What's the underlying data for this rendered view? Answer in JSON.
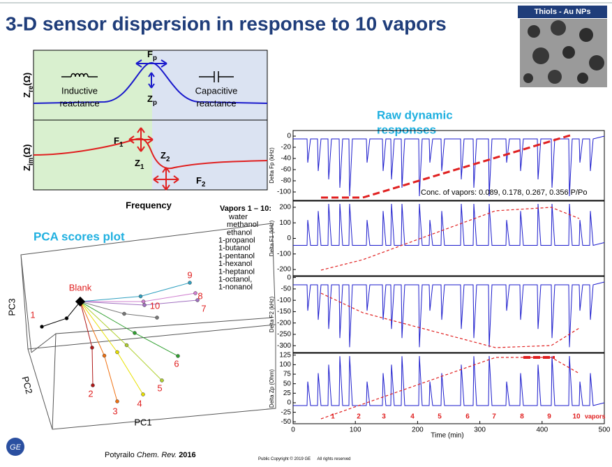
{
  "header": {
    "title": "3-D sensor dispersion in response to 10 vapors",
    "badge": "Thiols - Au NPs"
  },
  "impedance": {
    "zre": {
      "main": "Z",
      "sub": "re",
      "rest": "(Ω)"
    },
    "zim": {
      "main": "Z",
      "sub": "im",
      "rest": "(Ω)"
    },
    "fp": {
      "main": "F",
      "sub": "p"
    },
    "zp": {
      "main": "Z",
      "sub": "p"
    },
    "f1": {
      "main": "F",
      "sub": "1"
    },
    "z1": {
      "main": "Z",
      "sub": "1"
    },
    "z2": {
      "main": "Z",
      "sub": "2"
    },
    "f2": {
      "main": "F",
      "sub": "2"
    },
    "inductive": [
      "Inductive",
      "reactance"
    ],
    "capacitive": [
      "Capacitive",
      "reactance"
    ],
    "xlabel": "Frequency"
  },
  "raw": {
    "title": [
      "Raw dynamic",
      "responses"
    ],
    "conc": "Conc. of vapors: 0.089, 0.178, 0.267, 0.356 P/Po",
    "panels": [
      {
        "ylabel": "Delta Fp (kHz)",
        "ylim": [
          -115,
          10
        ],
        "yticks": [
          0,
          -20,
          -40,
          -60,
          -80,
          -100
        ]
      },
      {
        "ylabel": "Delta F1 (kHz)",
        "ylim": [
          -240,
          240
        ],
        "yticks": [
          200,
          100,
          0,
          -100,
          -200
        ]
      },
      {
        "ylabel": "Delta F2 (kHz)",
        "ylim": [
          -330,
          5
        ],
        "yticks": [
          0,
          -50,
          -100,
          -150,
          -200,
          -250,
          -300
        ]
      },
      {
        "ylabel": "Delta Zp (Ohm)",
        "ylim": [
          -55,
          130
        ],
        "yticks": [
          125,
          100,
          75,
          50,
          25,
          0,
          -25,
          -50
        ]
      }
    ],
    "xlim": [
      0,
      500
    ],
    "xticks": [
      0,
      100,
      200,
      300,
      400,
      500
    ],
    "xlabel": "Time (min)",
    "vapor_labels": [
      "1",
      "2",
      "3",
      "4",
      "5",
      "6",
      "7",
      "8",
      "9",
      "10"
    ],
    "vapors_word": "vapors"
  },
  "vapors": {
    "title": "Vapors 1 – 10:",
    "items": [
      "water",
      "methanol",
      "ethanol",
      "1-propanol",
      "1-butanol",
      "1-pentanol",
      "1-hexanol",
      "1-heptanol",
      "1-octanol,",
      "1-nonanol"
    ]
  },
  "pca": {
    "title": "PCA scores plot",
    "blank": "Blank",
    "axes": [
      "PC1",
      "PC2",
      "PC3"
    ],
    "point_labels": [
      "1",
      "2",
      "3",
      "4",
      "5",
      "6",
      "7",
      "8",
      "9",
      "10"
    ]
  },
  "footer": {
    "author": "Potyrailo",
    "journal": "Chem. Rev.",
    "year": "2016",
    "copyright": "Public Copyright © 2019 GE",
    "rights": "All rights reserved"
  }
}
